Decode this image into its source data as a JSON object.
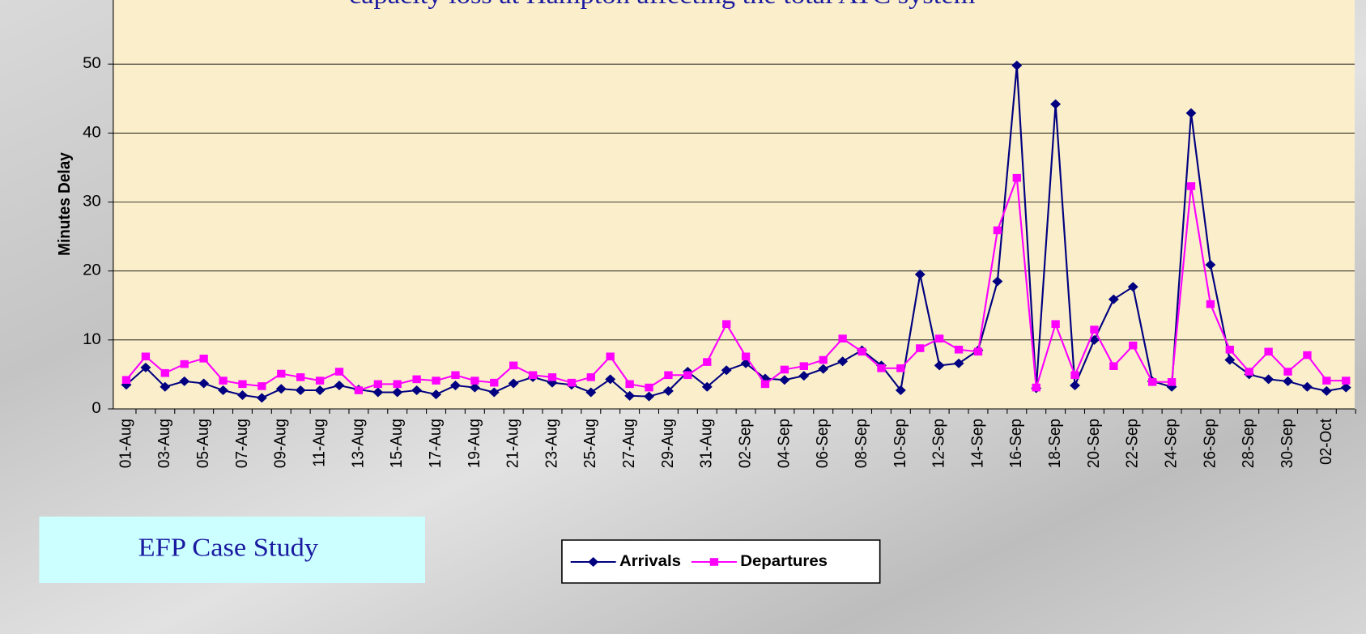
{
  "chart_data": {
    "type": "line",
    "title": "capacity loss at Hampton affecting the total ATC system",
    "ylabel": "Minutes Delay",
    "annotation": "EFP Case Study",
    "categories": [
      "01-Aug",
      null,
      "03-Aug",
      null,
      "05-Aug",
      null,
      "07-Aug",
      null,
      "09-Aug",
      null,
      "11-Aug",
      null,
      "13-Aug",
      null,
      "15-Aug",
      null,
      "17-Aug",
      null,
      "19-Aug",
      null,
      "21-Aug",
      null,
      "23-Aug",
      null,
      "25-Aug",
      null,
      "27-Aug",
      null,
      "29-Aug",
      null,
      "31-Aug",
      null,
      "02-Sep",
      null,
      "04-Sep",
      null,
      "06-Sep",
      null,
      "08-Sep",
      null,
      "10-Sep",
      null,
      "12-Sep",
      null,
      "14-Sep",
      null,
      "16-Sep",
      null,
      "18-Sep",
      null,
      "20-Sep",
      null,
      "22-Sep",
      null,
      "24-Sep",
      null,
      "26-Sep",
      null,
      "28-Sep",
      null,
      "30-Sep",
      null,
      "02-Oct",
      null
    ],
    "series": [
      {
        "name": "Arrivals",
        "color": "#000080",
        "marker": "diamond",
        "values": [
          3.5,
          6,
          3.2,
          4,
          3.7,
          2.7,
          2,
          1.6,
          2.9,
          2.7,
          2.7,
          3.4,
          2.8,
          2.4,
          2.4,
          2.7,
          2.1,
          3.4,
          3.1,
          2.4,
          3.7,
          4.6,
          3.8,
          3.5,
          2.4,
          4.3,
          1.9,
          1.8,
          2.6,
          5.4,
          3.2,
          5.6,
          6.6,
          4.4,
          4.2,
          4.8,
          5.8,
          6.9,
          8.5,
          6.3,
          2.7,
          19.5,
          6.3,
          6.6,
          8.5,
          18.5,
          49.8,
          3,
          44.2,
          3.4,
          10,
          15.9,
          17.7,
          4,
          3.2,
          42.9,
          20.9,
          7.1,
          5,
          4.3,
          4,
          3.2,
          2.6,
          3.1
        ]
      },
      {
        "name": "Departures",
        "color": "#ff00ff",
        "marker": "square",
        "values": [
          4.2,
          7.6,
          5.2,
          6.5,
          7.3,
          4.1,
          3.6,
          3.3,
          5.1,
          4.6,
          4.1,
          5.4,
          2.7,
          3.6,
          3.6,
          4.3,
          4.1,
          4.9,
          4.1,
          3.8,
          6.3,
          4.9,
          4.6,
          3.8,
          4.6,
          7.6,
          3.6,
          3.1,
          4.9,
          4.9,
          6.8,
          12.3,
          7.6,
          3.6,
          5.7,
          6.2,
          7.1,
          10.2,
          8.3,
          5.9,
          5.9,
          8.8,
          10.2,
          8.6,
          8.3,
          25.9,
          33.5,
          3.1,
          12.3,
          4.9,
          11.5,
          6.2,
          9.2,
          3.9,
          3.9,
          32.3,
          15.2,
          8.6,
          5.4,
          8.3,
          5.4,
          7.8,
          4.1,
          4.1
        ]
      }
    ],
    "ylim": [
      0,
      60
    ],
    "yticks": [
      0,
      10,
      20,
      30,
      40,
      50
    ],
    "grid": true,
    "legend": "bottom"
  }
}
